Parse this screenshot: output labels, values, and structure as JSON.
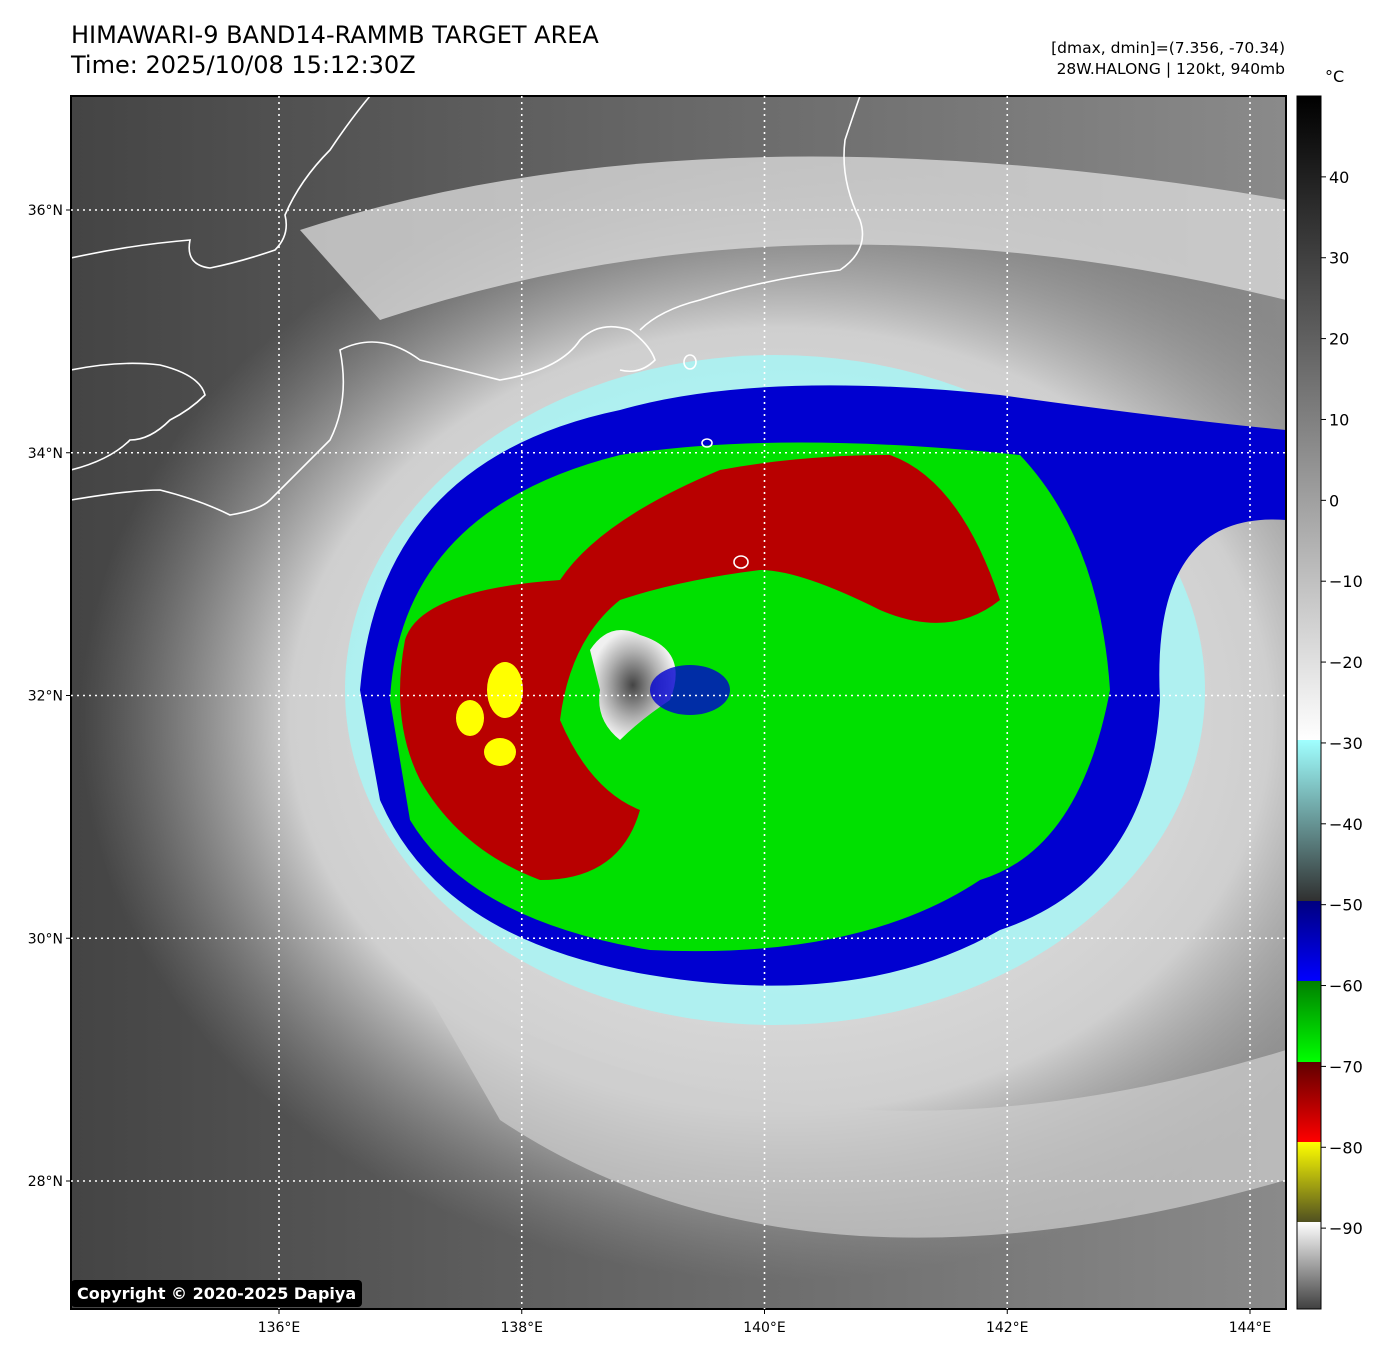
{
  "header": {
    "title": "HIMAWARI-9 BAND14-RAMMB TARGET AREA",
    "time": "Time: 2025/10/08 15:12:30Z",
    "range": "[dmax, dmin]=(7.356, -70.34)",
    "storm": "28W.HALONG | 120kt, 940mb"
  },
  "map": {
    "lat_ticks": [
      "36°N",
      "34°N",
      "32°N",
      "30°N",
      "28°N"
    ],
    "lon_ticks": [
      "136°E",
      "138°E",
      "140°E",
      "142°E",
      "144°E"
    ],
    "lat_values": [
      36,
      34,
      32,
      30,
      28
    ],
    "lon_values": [
      136,
      138,
      140,
      142,
      144
    ],
    "gridlines": "dotted white"
  },
  "colorbar": {
    "unit": "°C",
    "ticks": [
      "40",
      "30",
      "20",
      "10",
      "0",
      "−10",
      "−20",
      "−30",
      "−40",
      "−50",
      "−60",
      "−70",
      "−80",
      "−90"
    ],
    "tick_values": [
      40,
      30,
      20,
      10,
      0,
      -10,
      -20,
      -30,
      -40,
      -50,
      -60,
      -70,
      -80,
      -90
    ],
    "range": [
      -100,
      50
    ]
  },
  "footer": {
    "copyright": "Copyright © 2020-2025 Dapiya"
  },
  "colors": {
    "blue": "#0000c8",
    "green": "#00dc00",
    "red": "#b40000",
    "yellow": "#ffff00",
    "cyan": "#a0ffff"
  }
}
